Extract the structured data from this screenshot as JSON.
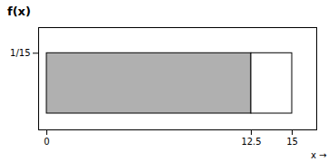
{
  "chart_data": {
    "type": "histogram",
    "title": "f(x)",
    "x_label": "x",
    "bins": [
      0,
      12.5,
      15
    ],
    "values": [
      0.0667,
      0.0667
    ],
    "colors": [
      "#b0b0b0",
      "white"
    ],
    "xlim": [
      -0.5,
      16.5
    ],
    "ylim": [
      -0.018,
      0.095
    ],
    "xticks": [
      0,
      12.5,
      15
    ],
    "yticks": [
      {
        "value": 0.0667,
        "label": "1/15"
      }
    ],
    "grid": false
  }
}
